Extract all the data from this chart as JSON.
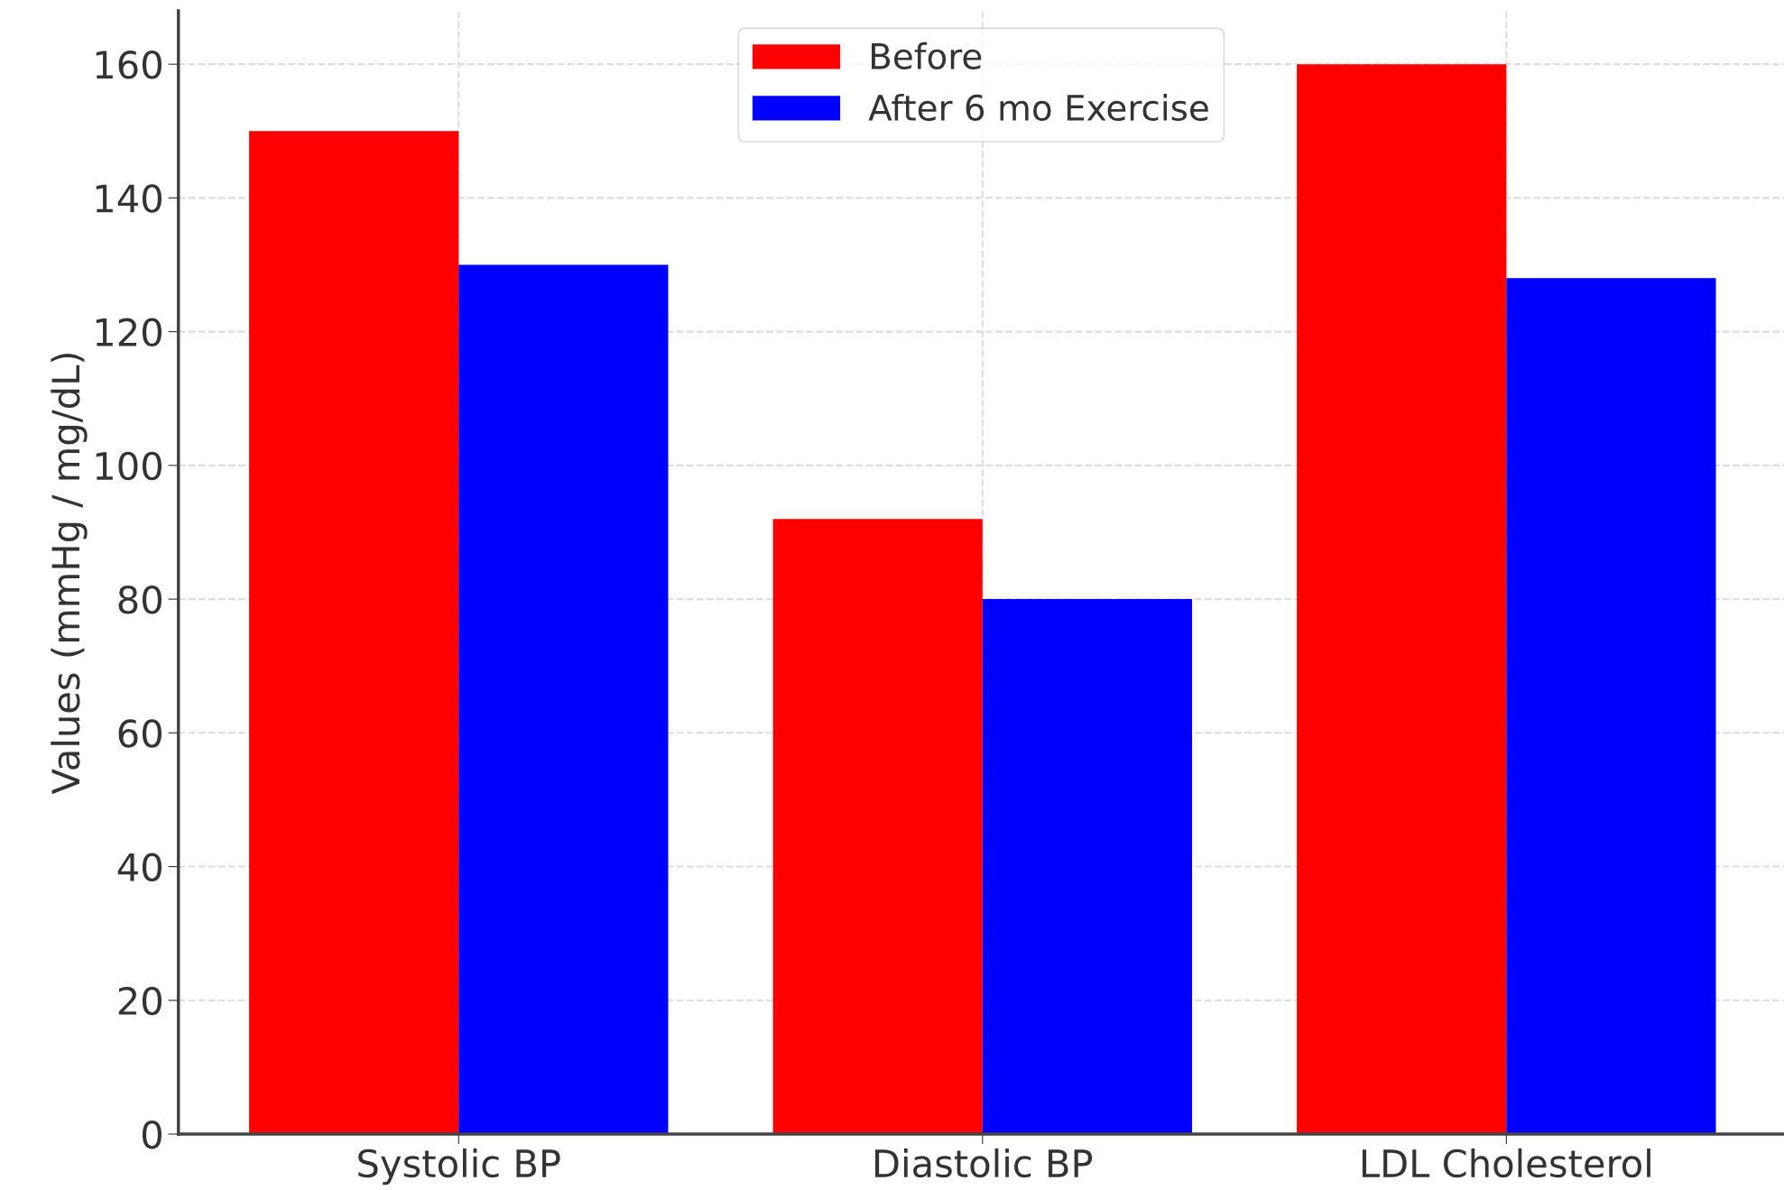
{
  "chart_data": {
    "type": "bar",
    "ylabel": "Values (mmHg / mg/dL)",
    "categories": [
      "Systolic BP",
      "Diastolic BP",
      "LDL Cholesterol"
    ],
    "series": [
      {
        "name": "Before",
        "color": "#ff0000",
        "values": [
          150,
          92,
          160
        ]
      },
      {
        "name": "After 6 mo Exercise",
        "color": "#0000ff",
        "values": [
          130,
          80,
          128
        ]
      }
    ],
    "ylim": [
      0,
      168
    ],
    "yticks": [
      0,
      20,
      40,
      60,
      80,
      100,
      120,
      140,
      160
    ],
    "grid": true,
    "legend": "top"
  }
}
